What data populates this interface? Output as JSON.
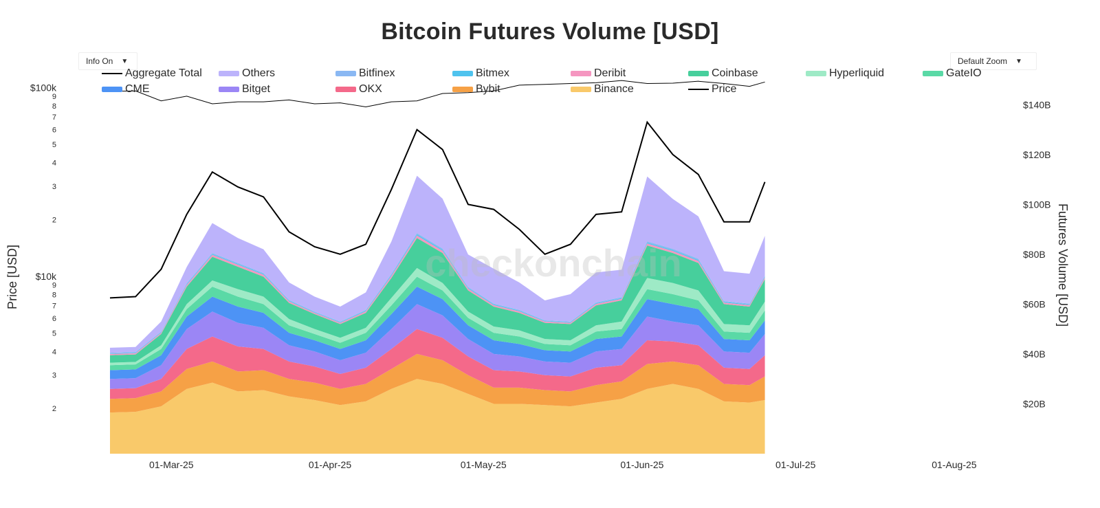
{
  "page": {
    "title": "Bitcoin Futures Volume [USD]",
    "watermark": "checkonchain",
    "info_toggle": "Info On",
    "zoom_select": "Default Zoom"
  },
  "colors": {
    "Binance": "#f9c96a",
    "Bybit": "#f6a146",
    "OKX": "#f4698a",
    "Bitget": "#9b86f5",
    "CME": "#4d93f5",
    "GateIO": "#5ad9a6",
    "Hyperliquid": "#9eeac6",
    "Coinbase": "#47cf9c",
    "Deribit": "#f596c0",
    "Bitmex": "#4fc3ee",
    "Bitfinex": "#8ab8f3",
    "Others": "#bcb3fb",
    "Aggregate Total": "#000000",
    "Price": "#000000"
  },
  "legend": {
    "row1": [
      "Aggregate Total",
      "Others",
      "Bitfinex",
      "Bitmex",
      "Deribit",
      "Coinbase",
      "Hyperliquid",
      "GateIO"
    ],
    "row2": [
      "CME",
      "Bitget",
      "OKX",
      "Bybit",
      "Binance",
      "Price"
    ]
  },
  "chart_data": {
    "type": "area",
    "title": "Bitcoin Futures Volume [USD]",
    "x_axis": {
      "tick_labels": [
        "01-Mar-25",
        "01-Apr-25",
        "01-May-25",
        "01-Jun-25",
        "01-Jul-25",
        "01-Aug-25"
      ],
      "range": [
        "2025-02-08",
        "2025-08-08"
      ]
    },
    "y_left": {
      "label": "Price [USD]",
      "scale": "log",
      "tick_labels": [
        "2",
        "3",
        "4",
        "5",
        "6",
        "7",
        "8",
        "9",
        "$10k",
        "2",
        "3",
        "4",
        "5",
        "6",
        "7",
        "8",
        "9",
        "$100k"
      ]
    },
    "y_right": {
      "label": "Futures Volume [USD]",
      "range_billion": [
        0,
        150
      ],
      "tick_labels": [
        "$20B",
        "$40B",
        "$60B",
        "$80B",
        "$100B",
        "$120B",
        "$140B"
      ]
    },
    "dates": [
      "2025-02-17",
      "2025-02-22",
      "2025-02-27",
      "2025-03-04",
      "2025-03-09",
      "2025-03-14",
      "2025-03-19",
      "2025-03-24",
      "2025-03-29",
      "2025-04-03",
      "2025-04-08",
      "2025-04-13",
      "2025-04-18",
      "2025-04-23",
      "2025-04-28",
      "2025-05-03",
      "2025-05-08",
      "2025-05-13",
      "2025-05-18",
      "2025-05-23",
      "2025-05-28",
      "2025-06-02",
      "2025-06-07",
      "2025-06-12",
      "2025-06-17",
      "2025-06-22",
      "2025-06-25"
    ],
    "series": [
      {
        "name": "Binance",
        "values": [
          16.5,
          16.8,
          19,
          26,
          28.5,
          25,
          25.5,
          23,
          21.5,
          19.5,
          21,
          26,
          30,
          28,
          24,
          20,
          20,
          19.5,
          19,
          20.5,
          22,
          26,
          28,
          26,
          21,
          20.5,
          21.5
        ]
      },
      {
        "name": "Bybit",
        "values": [
          5.5,
          5.5,
          6,
          8,
          8.5,
          8,
          8,
          7,
          7,
          6.5,
          7,
          8,
          10,
          9.5,
          7.5,
          6.5,
          6.5,
          6,
          6,
          7,
          7,
          10,
          9,
          9.5,
          7,
          7,
          9.5
        ]
      },
      {
        "name": "OKX",
        "values": [
          4,
          4,
          5,
          8,
          10,
          10,
          8.5,
          7,
          6.5,
          6,
          6.5,
          8,
          10,
          9,
          7.5,
          7,
          6.5,
          6,
          6,
          7,
          6.5,
          9.5,
          8,
          8,
          6.5,
          6.5,
          8.5
        ]
      },
      {
        "name": "Bitget",
        "values": [
          4,
          4,
          5.5,
          8,
          10,
          9.5,
          8.5,
          6.5,
          6,
          5.5,
          6,
          8,
          10,
          9,
          7,
          6.5,
          6,
          5.5,
          5.5,
          6.5,
          6.5,
          9.5,
          8,
          8,
          6.5,
          6.5,
          8.5
        ]
      },
      {
        "name": "CME",
        "values": [
          3.5,
          3.5,
          4,
          5,
          6,
          6.5,
          6,
          5,
          4.5,
          4.5,
          5,
          6,
          7,
          6.5,
          5.5,
          5.5,
          5,
          4.5,
          4.5,
          5,
          5,
          7,
          7,
          6.5,
          5,
          5,
          5.5
        ]
      },
      {
        "name": "GateIO",
        "values": [
          2,
          2,
          2.5,
          3,
          4,
          4,
          3.5,
          3,
          2.5,
          2.5,
          3,
          3.5,
          4,
          3.5,
          3,
          3,
          3,
          2.5,
          2.5,
          3,
          3,
          4,
          4,
          3.5,
          3,
          3,
          4
        ]
      },
      {
        "name": "Hyperliquid",
        "values": [
          1,
          1,
          1.5,
          2,
          2.5,
          3,
          3,
          2.5,
          2,
          2,
          2,
          3,
          3.5,
          3,
          2.5,
          2.5,
          2.5,
          2,
          2,
          2.5,
          3,
          4.5,
          4.5,
          4,
          3,
          3,
          3.5
        ]
      },
      {
        "name": "Coinbase",
        "values": [
          3,
          3,
          4.5,
          7,
          9.5,
          9,
          8,
          6.5,
          6,
          5.5,
          6,
          8,
          12,
          12,
          8.5,
          8,
          7,
          6.5,
          6.5,
          8,
          8.5,
          13,
          12,
          11,
          8,
          7.5,
          9
        ]
      },
      {
        "name": "Deribit",
        "values": [
          0.5,
          0.5,
          0.5,
          0.7,
          0.8,
          0.8,
          0.8,
          0.6,
          0.5,
          0.5,
          0.6,
          0.8,
          1,
          0.9,
          0.7,
          0.6,
          0.6,
          0.5,
          0.5,
          0.6,
          0.6,
          0.8,
          0.8,
          0.8,
          0.6,
          0.6,
          0.7
        ]
      },
      {
        "name": "Bitmex",
        "values": [
          0.2,
          0.2,
          0.2,
          0.3,
          0.3,
          0.3,
          0.3,
          0.3,
          0.2,
          0.2,
          0.3,
          0.4,
          0.5,
          0.4,
          0.3,
          0.3,
          0.3,
          0.2,
          0.2,
          0.3,
          0.3,
          0.4,
          0.4,
          0.4,
          0.3,
          0.3,
          0.3
        ]
      },
      {
        "name": "Bitfinex",
        "values": [
          0.3,
          0.3,
          0.3,
          0.4,
          0.4,
          0.4,
          0.4,
          0.3,
          0.3,
          0.3,
          0.3,
          0.4,
          0.5,
          0.5,
          0.4,
          0.3,
          0.3,
          0.3,
          0.3,
          0.3,
          0.4,
          0.5,
          0.5,
          0.5,
          0.3,
          0.3,
          0.4
        ]
      },
      {
        "name": "Others",
        "values": [
          2,
          2,
          4,
          6.5,
          12,
          10,
          9.5,
          7,
          6,
          6,
          7,
          13,
          23,
          20,
          13,
          14,
          11,
          8,
          11,
          12,
          11,
          26,
          20,
          17,
          12,
          12,
          16
        ]
      }
    ],
    "aggregate_total_billion": [
      62.5,
      63,
      74,
      96,
      113,
      107,
      103,
      89,
      83,
      80,
      84,
      106,
      130,
      122,
      100,
      98,
      90,
      80,
      84,
      96,
      97,
      133,
      120,
      112,
      93,
      93,
      109
    ],
    "price_usd": [
      95500,
      96000,
      85000,
      90000,
      82000,
      84000,
      84000,
      86000,
      82000,
      83000,
      79000,
      84000,
      85000,
      93000,
      94000,
      96000,
      103000,
      104000,
      105000,
      106000,
      109000,
      105000,
      105500,
      108000,
      105000,
      101500,
      107000
    ]
  }
}
